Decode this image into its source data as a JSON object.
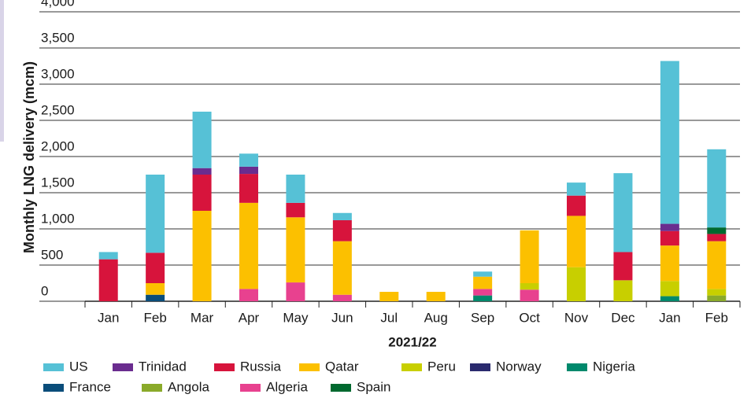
{
  "chart_data": {
    "type": "stacked-bar",
    "ylabel": "Monthly LNG delivery (mcm)",
    "xlabel": "2021/22",
    "categories": [
      "Jan",
      "Feb",
      "Mar",
      "Apr",
      "May",
      "Jun",
      "Jul",
      "Aug",
      "Sep",
      "Oct",
      "Nov",
      "Dec",
      "Jan",
      "Feb"
    ],
    "ylim": [
      0,
      4000
    ],
    "yticks": [
      0,
      500,
      {
        "value": 1000,
        "label": "1,000"
      },
      {
        "value": 1500,
        "label": "1,500"
      },
      {
        "value": 2000,
        "label": "2,000"
      },
      {
        "value": 2500,
        "label": "2,500"
      },
      {
        "value": 3000,
        "label": "3,000"
      },
      {
        "value": 3500,
        "label": "3,500"
      },
      {
        "value": 4000,
        "label": "4,000"
      }
    ],
    "grid": true,
    "series": [
      {
        "name": "US",
        "color": "#56c1d6",
        "values": [
          100,
          1080,
          780,
          180,
          390,
          100,
          0,
          0,
          70,
          0,
          180,
          1090,
          2250,
          1080
        ]
      },
      {
        "name": "Trinidad",
        "color": "#6a2c8f",
        "values": [
          0,
          0,
          90,
          100,
          0,
          0,
          0,
          0,
          0,
          0,
          0,
          0,
          100,
          0
        ]
      },
      {
        "name": "Russia",
        "color": "#d7143c",
        "values": [
          580,
          420,
          500,
          400,
          200,
          290,
          0,
          0,
          0,
          0,
          280,
          390,
          200,
          100
        ]
      },
      {
        "name": "Qatar",
        "color": "#fcc000",
        "values": [
          0,
          160,
          1250,
          1190,
          900,
          740,
          130,
          130,
          170,
          730,
          710,
          0,
          490,
          660
        ]
      },
      {
        "name": "Peru",
        "color": "#c8cf00",
        "values": [
          0,
          0,
          0,
          0,
          0,
          0,
          0,
          0,
          0,
          90,
          470,
          290,
          210,
          90
        ]
      },
      {
        "name": "Norway",
        "color": "#2a2a6e",
        "values": [
          0,
          0,
          0,
          0,
          0,
          0,
          0,
          0,
          0,
          0,
          0,
          0,
          0,
          0
        ]
      },
      {
        "name": "Nigeria",
        "color": "#00896c",
        "values": [
          0,
          0,
          0,
          0,
          0,
          0,
          0,
          0,
          80,
          0,
          0,
          0,
          70,
          0
        ]
      },
      {
        "name": "France",
        "color": "#0a4d7a",
        "values": [
          0,
          90,
          0,
          0,
          0,
          0,
          0,
          0,
          0,
          0,
          0,
          0,
          0,
          0
        ]
      },
      {
        "name": "Angola",
        "color": "#8aaa2a",
        "values": [
          0,
          0,
          0,
          0,
          0,
          0,
          0,
          0,
          0,
          0,
          0,
          0,
          0,
          80
        ]
      },
      {
        "name": "Algeria",
        "color": "#e8418f",
        "values": [
          0,
          0,
          0,
          170,
          260,
          90,
          0,
          0,
          90,
          160,
          0,
          0,
          0,
          0
        ]
      },
      {
        "name": "Spain",
        "color": "#00692f",
        "values": [
          0,
          0,
          0,
          0,
          0,
          0,
          0,
          0,
          0,
          0,
          0,
          0,
          0,
          90
        ]
      }
    ]
  }
}
